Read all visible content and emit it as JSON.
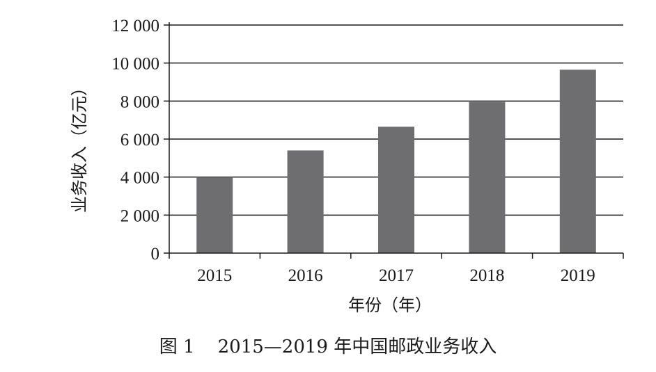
{
  "chart_data": {
    "type": "bar",
    "categories": [
      "2015",
      "2016",
      "2017",
      "2018",
      "2019"
    ],
    "values": [
      4000,
      5400,
      6650,
      7950,
      9650
    ],
    "ylim": [
      0,
      12000
    ],
    "yticks": [
      0,
      2000,
      4000,
      6000,
      8000,
      10000,
      12000
    ],
    "ytick_labels": [
      "0",
      "2 000",
      "4 000",
      "6 000",
      "8 000",
      "10 000",
      "12 000"
    ],
    "ylabel": "业务收入（亿元）",
    "xlabel": "年份（年）",
    "grid": true,
    "bar_color": "#6e6e70",
    "axis_color": "#1a1a1a"
  },
  "caption": {
    "label": "图 1",
    "text": "2015—2019 年中国邮政业务收入"
  }
}
